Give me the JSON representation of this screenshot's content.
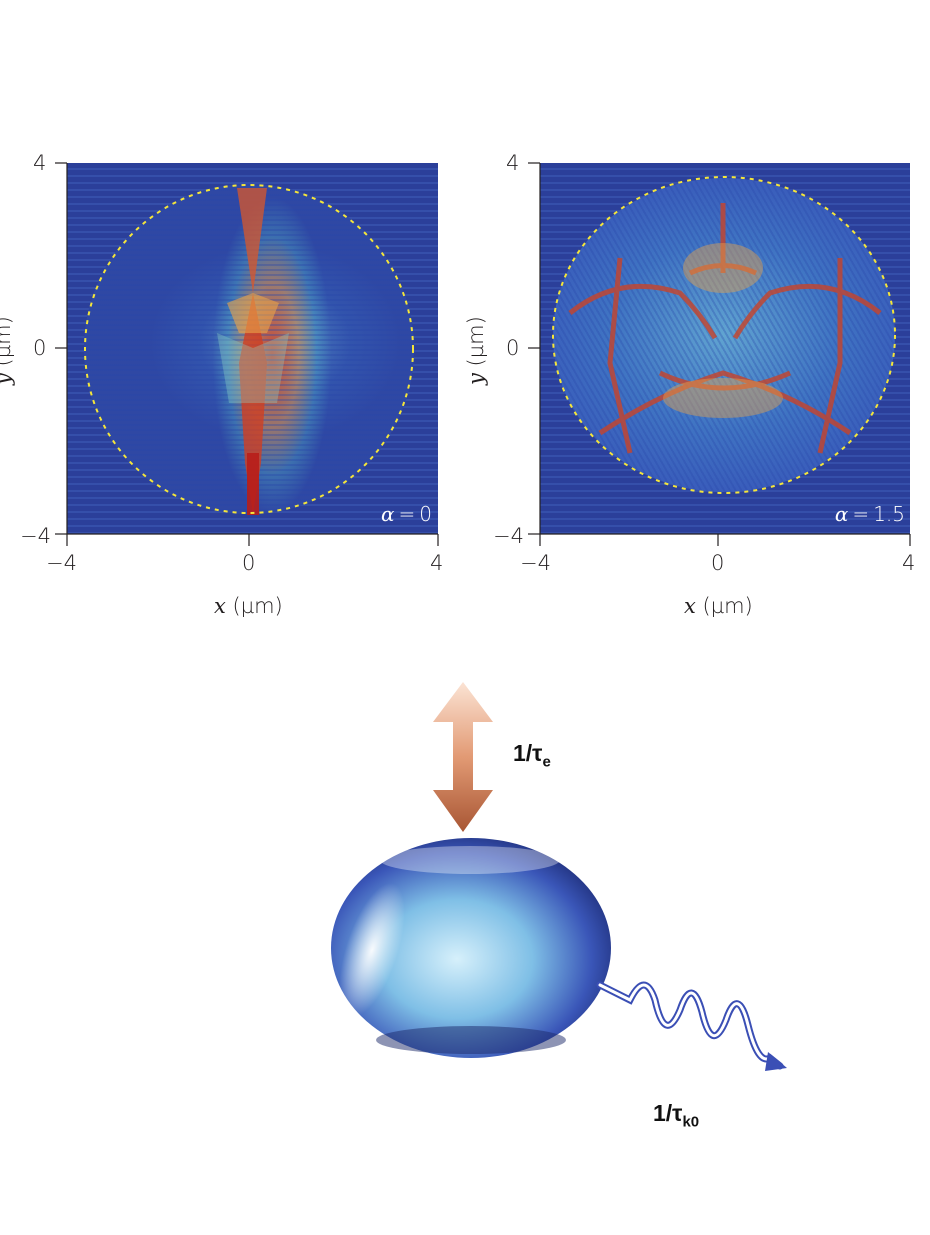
{
  "chart_data": [
    {
      "type": "heatmap",
      "panel": "left",
      "annotation": "α = 0",
      "alpha_symbol": "α",
      "alpha_value": "0",
      "xlabel_var": "x",
      "xlabel_unit": "(µm)",
      "ylabel_var": "y",
      "ylabel_unit": "(µm)",
      "xlim": [
        -4,
        4
      ],
      "ylim": [
        -4,
        4
      ],
      "xticks": [
        "−4",
        "0",
        "4"
      ],
      "yticks": [
        "4",
        "0",
        "−4"
      ],
      "dashed_circle_radius": 3.55,
      "colors": {
        "background": "#2b3f9a",
        "circle": "#f5e63a",
        "hot": "#c0301c"
      }
    },
    {
      "type": "heatmap",
      "panel": "right",
      "annotation": "α = 1.5",
      "alpha_symbol": "α",
      "alpha_value": "1.5",
      "xlabel_var": "x",
      "xlabel_unit": "(µm)",
      "ylabel_var": "y",
      "ylabel_unit": "(µm)",
      "xlim": [
        -4,
        4
      ],
      "ylim": [
        -4,
        4
      ],
      "xticks": [
        "−4",
        "0",
        "4"
      ],
      "yticks": [
        "4",
        "0",
        "−4"
      ],
      "dashed_circle_radius": 3.55,
      "colors": {
        "background": "#2b3f9a",
        "circle": "#f5e63a",
        "hot": "#c0301c"
      }
    }
  ],
  "schematic": {
    "exchange_rate_main": "1/τ",
    "exchange_rate_sub": "e",
    "emission_rate_main": "1/τ",
    "emission_rate_sub": "k0",
    "colors": {
      "droplet": "#3a56b8",
      "arrow_light": "#f4cbb2",
      "arrow_dark": "#b5643f",
      "photon": "#3b4fb5"
    }
  }
}
